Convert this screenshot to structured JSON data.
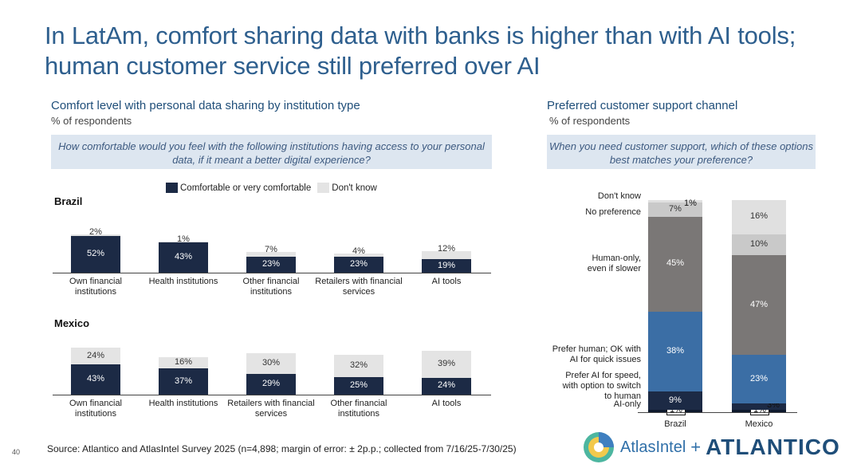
{
  "title": "In LatAm, comfort sharing data with banks is higher than with AI tools; human customer service still preferred over AI",
  "left": {
    "title": "Comfort level with personal data sharing by institution type",
    "subtitle": "% of respondents",
    "question": "How comfortable would you feel with the following institutions having access to your personal data, if it meant a better digital experience?",
    "legend": [
      {
        "label": "Comfortable or very comfortable",
        "color": "#1c2a45"
      },
      {
        "label": "Don't know",
        "color": "#e4e4e4"
      }
    ]
  },
  "right": {
    "title": "Preferred customer support channel",
    "subtitle": "% of respondents",
    "question": "When you need customer support, which of these options best matches your preference?"
  },
  "chart_data": [
    {
      "type": "bar",
      "title": "Brazil",
      "stacked": true,
      "categories": [
        "Own financial institutions",
        "Health institutions",
        "Other financial institutions",
        "Retailers with financial services",
        "AI tools"
      ],
      "series": [
        {
          "name": "Comfortable or very comfortable",
          "color": "#1c2a45",
          "values": [
            52,
            43,
            23,
            23,
            19
          ]
        },
        {
          "name": "Don't know",
          "color": "#e4e4e4",
          "values": [
            2,
            1,
            7,
            4,
            12
          ]
        }
      ]
    },
    {
      "type": "bar",
      "title": "Mexico",
      "stacked": true,
      "categories": [
        "Own financial institutions",
        "Health institutions",
        "Retailers with financial services",
        "Other financial institutions",
        "AI tools"
      ],
      "series": [
        {
          "name": "Comfortable or very comfortable",
          "color": "#1c2a45",
          "values": [
            43,
            37,
            29,
            25,
            24
          ]
        },
        {
          "name": "Don't know",
          "color": "#e4e4e4",
          "values": [
            24,
            16,
            30,
            32,
            39
          ]
        }
      ]
    },
    {
      "type": "bar",
      "stacked": true,
      "orientation": "vertical-100",
      "categories": [
        "Brazil",
        "Mexico"
      ],
      "series": [
        {
          "name": "AI-only",
          "color": "#0f1a2e",
          "values": [
            1,
            1
          ]
        },
        {
          "name": "Prefer AI for speed, with option to switch to human",
          "color": "#1c2a45",
          "values": [
            9,
            3
          ]
        },
        {
          "name": "Prefer human; OK with AI for quick issues",
          "color": "#3b6ea5",
          "values": [
            38,
            23
          ]
        },
        {
          "name": "Human-only, even if slower",
          "color": "#7a7776",
          "values": [
            45,
            47
          ]
        },
        {
          "name": "No preference",
          "color": "#c9c9c9",
          "values": [
            7,
            10
          ]
        },
        {
          "name": "Don't know",
          "color": "#e0e0e0",
          "values": [
            1,
            16
          ]
        }
      ],
      "series_labels": [
        "AI-only",
        "Prefer AI for speed,\nwith option to switch\nto human",
        "Prefer human; OK with\nAI for quick issues",
        "Human-only,\neven if slower",
        "No preference",
        "Don't know"
      ]
    }
  ],
  "source": "Source: Atlantico and AtlasIntel Survey 2025 (n=4,898; margin of error: ± 2p.p.; collected from 7/16/25-7/30/25)",
  "page_number": "40",
  "logos": {
    "left": "AtlasIntel",
    "plus": "+",
    "right": "ATLANTICO"
  }
}
